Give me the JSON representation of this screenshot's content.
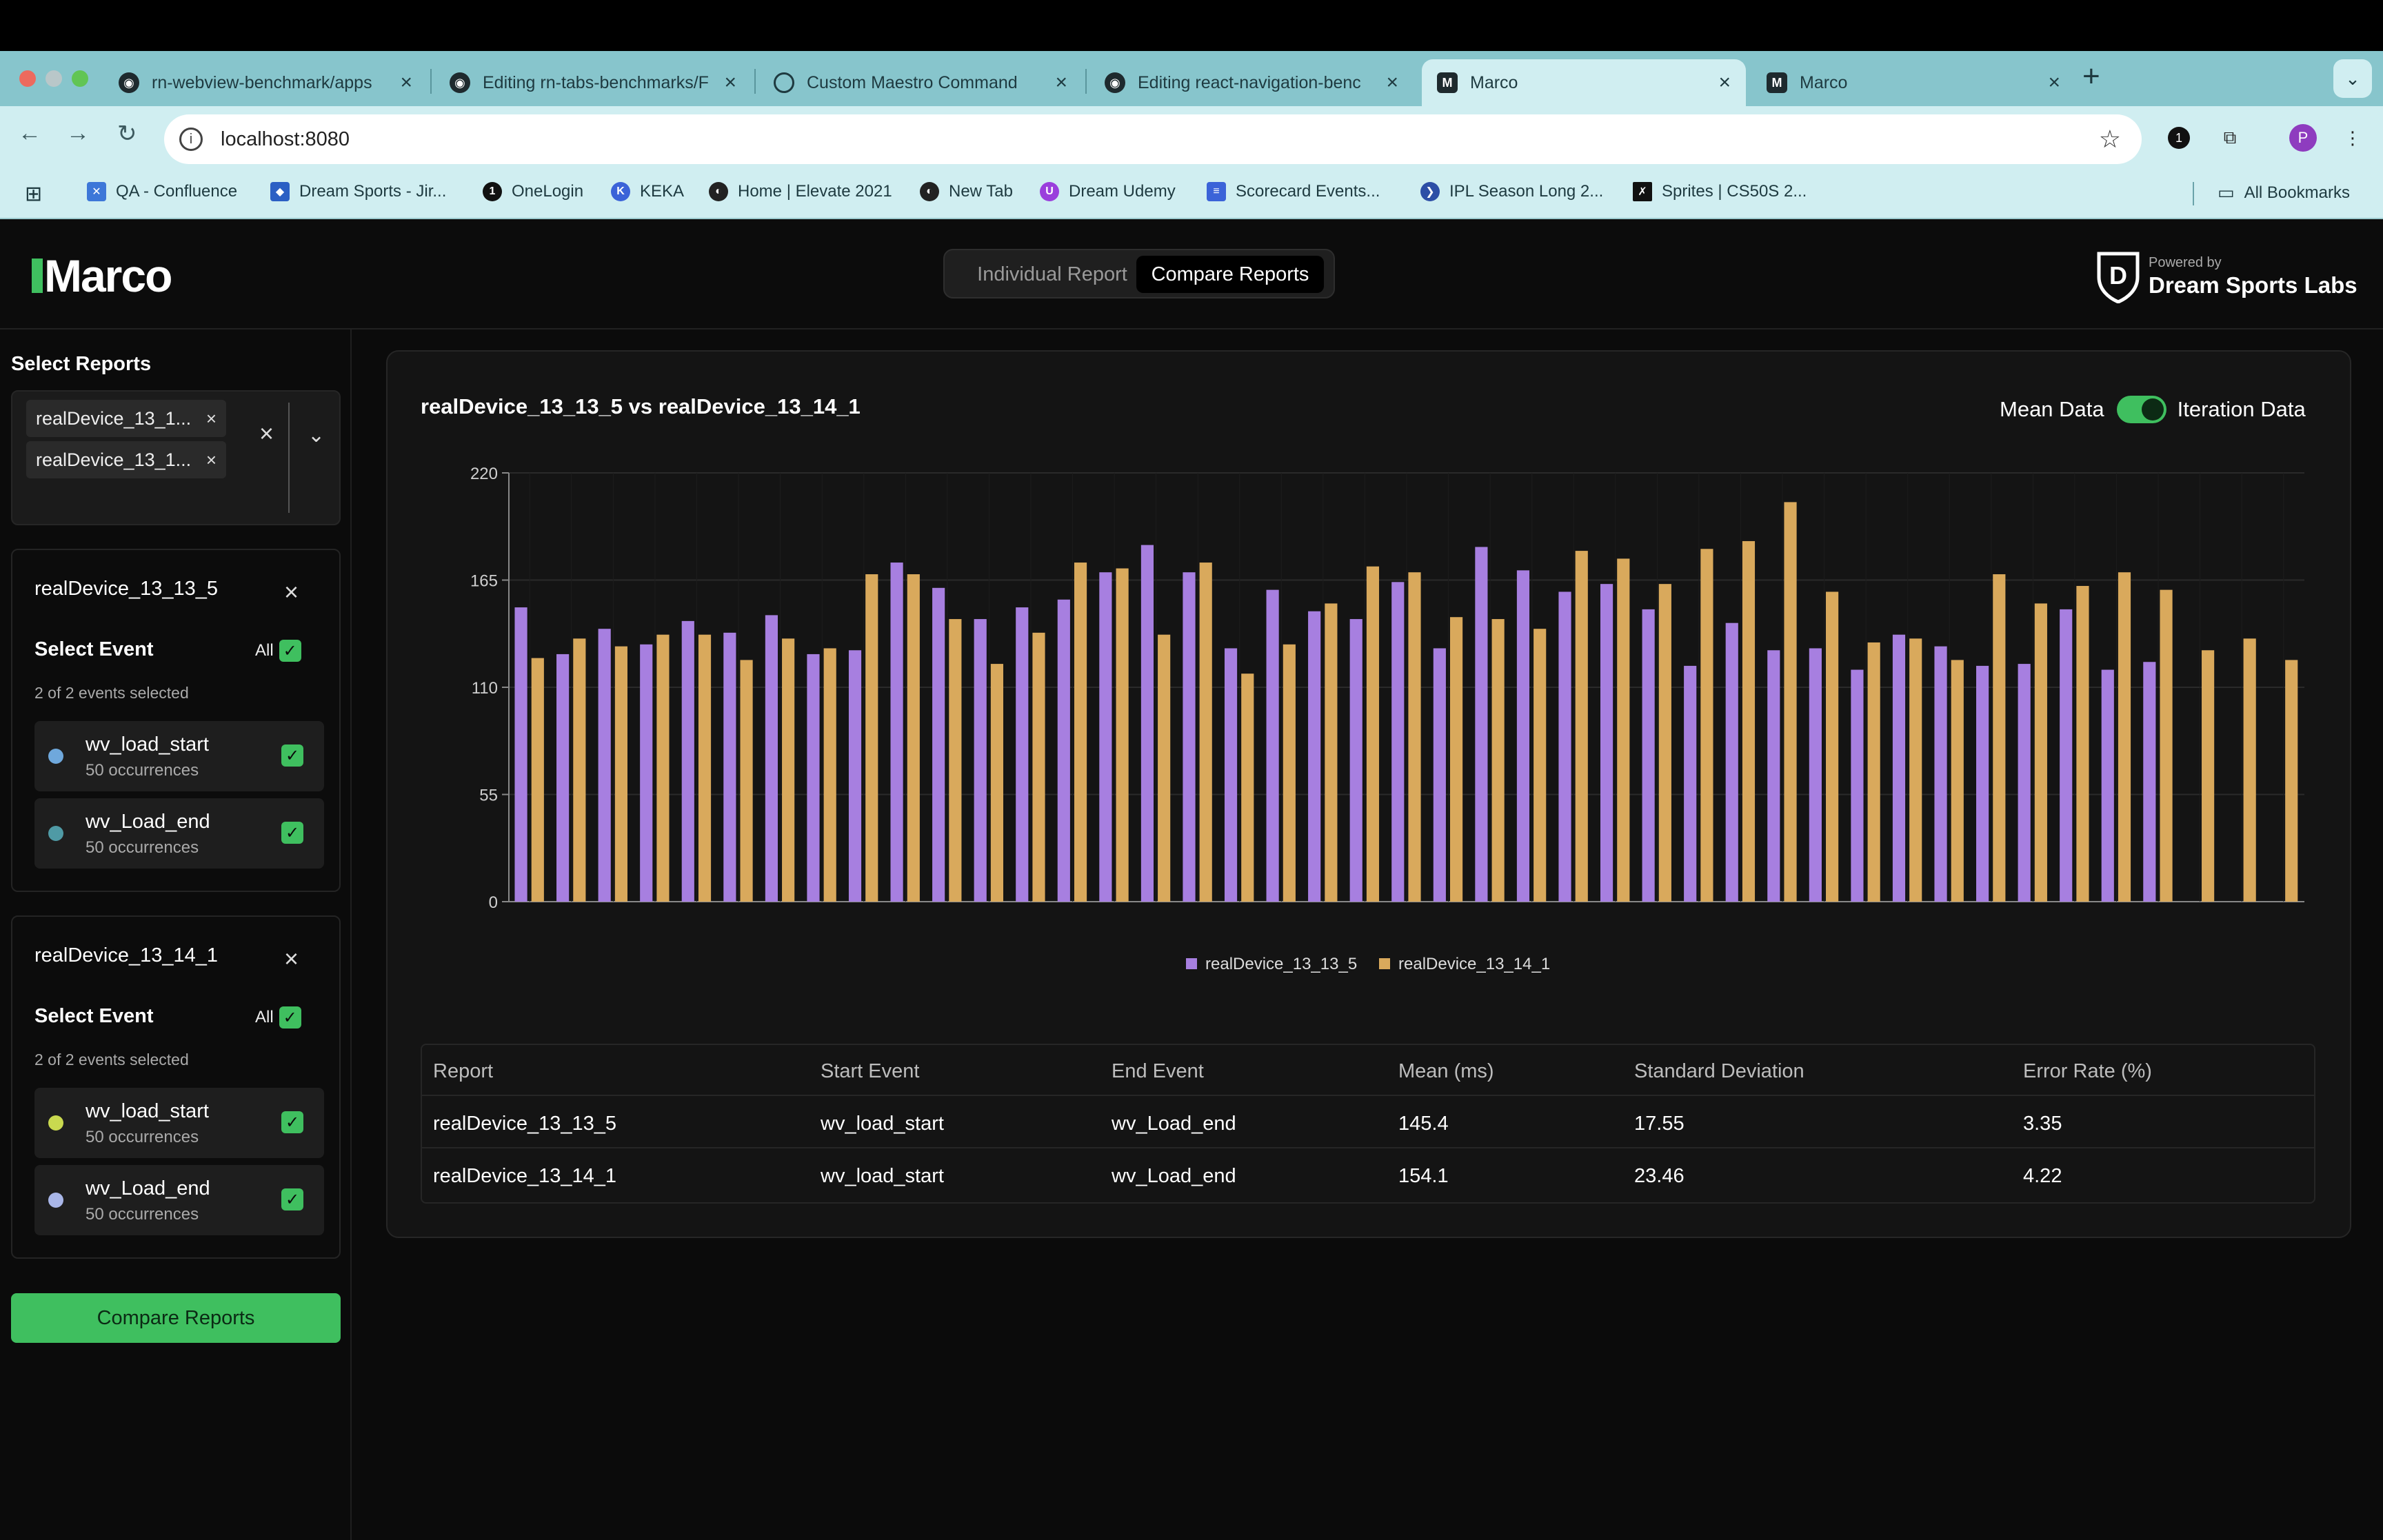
{
  "browser": {
    "tabs": [
      {
        "label": "rn-webview-benchmark/apps",
        "favicon": "github-icon"
      },
      {
        "label": "Editing rn-tabs-benchmarks/F",
        "favicon": "github-icon"
      },
      {
        "label": "Custom Maestro Command",
        "favicon": "maestro-icon"
      },
      {
        "label": "Editing react-navigation-benc",
        "favicon": "github-icon"
      },
      {
        "label": "Marco",
        "favicon": "marco-icon",
        "active": true
      },
      {
        "label": "Marco",
        "favicon": "marco-icon"
      }
    ],
    "url": "localhost:8080",
    "bookmarks": [
      {
        "label": "QA - Confluence"
      },
      {
        "label": "Dream Sports - Jir..."
      },
      {
        "label": "OneLogin"
      },
      {
        "label": "KEKA"
      },
      {
        "label": "Home | Elevate 2021"
      },
      {
        "label": "New Tab"
      },
      {
        "label": "Dream Udemy"
      },
      {
        "label": "Scorecard Events..."
      },
      {
        "label": "IPL Season Long 2..."
      },
      {
        "label": "Sprites | CS50S 2..."
      },
      {
        "label": "All Bookmarks"
      }
    ],
    "profile_initial": "P"
  },
  "app": {
    "logo": "Marco",
    "tabs": {
      "individual": "Individual Report",
      "compare": "Compare Reports"
    },
    "powered_by": "Powered by",
    "powered_name": "Dream Sports Labs"
  },
  "sidebar": {
    "title": "Select Reports",
    "selected_chips": [
      "realDevice_13_1...",
      "realDevice_13_1..."
    ],
    "reports": [
      {
        "name": "realDevice_13_13_5",
        "select_event_label": "Select Event",
        "all_label": "All",
        "count_text": "2 of 2 events selected",
        "events": [
          {
            "name": "wv_load_start",
            "occurrences": "50 occurrences",
            "color": "#6fa8dc"
          },
          {
            "name": "wv_Load_end",
            "occurrences": "50 occurrences",
            "color": "#4f9aa5"
          }
        ]
      },
      {
        "name": "realDevice_13_14_1",
        "select_event_label": "Select Event",
        "all_label": "All",
        "count_text": "2 of 2 events selected",
        "events": [
          {
            "name": "wv_load_start",
            "occurrences": "50 occurrences",
            "color": "#c9d94f"
          },
          {
            "name": "wv_Load_end",
            "occurrences": "50 occurrences",
            "color": "#a9b6e8"
          }
        ]
      }
    ],
    "compare_button": "Compare Reports"
  },
  "main": {
    "title": "realDevice_13_13_5 vs realDevice_13_14_1",
    "toggle_left": "Mean Data",
    "toggle_right": "Iteration Data",
    "table": {
      "headers": [
        "Report",
        "Start Event",
        "End Event",
        "Mean (ms)",
        "Standard Deviation",
        "Error Rate (%)"
      ],
      "rows": [
        [
          "realDevice_13_13_5",
          "wv_load_start",
          "wv_Load_end",
          "145.4",
          "17.55",
          "3.35"
        ],
        [
          "realDevice_13_14_1",
          "wv_load_start",
          "wv_Load_end",
          "154.1",
          "23.46",
          "4.22"
        ]
      ]
    }
  },
  "chart_data": {
    "type": "bar",
    "ylim": [
      0,
      220
    ],
    "yticks": [
      "0",
      "55",
      "110",
      "165",
      "220"
    ],
    "grid": true,
    "legend_position": "bottom",
    "series": [
      {
        "name": "realDevice_13_13_5",
        "color": "#a77fe0",
        "values": [
          151,
          127,
          140,
          132,
          144,
          138,
          147,
          127,
          129,
          174,
          161,
          145,
          151,
          155,
          169,
          183,
          169,
          130,
          160,
          149,
          145,
          164,
          130,
          182,
          170,
          159,
          163,
          150,
          121,
          143,
          129,
          130,
          119,
          137,
          131,
          121,
          122,
          150,
          119,
          123
        ]
      },
      {
        "name": "realDevice_13_14_1",
        "color": "#d9a95c",
        "values": [
          125,
          135,
          131,
          137,
          137,
          124,
          135,
          130,
          168,
          168,
          145,
          122,
          138,
          174,
          171,
          137,
          174,
          117,
          132,
          153,
          172,
          169,
          146,
          145,
          140,
          180,
          176,
          163,
          181,
          185,
          205,
          159,
          133,
          135,
          124,
          168,
          153,
          162,
          169,
          160,
          129,
          135,
          124
        ]
      }
    ]
  }
}
